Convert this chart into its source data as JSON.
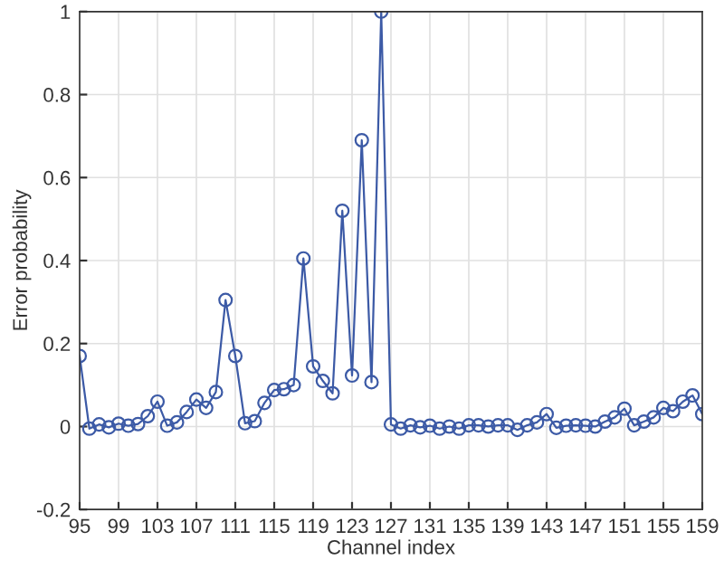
{
  "chart_data": {
    "type": "line",
    "xlabel": "Channel index",
    "ylabel": "Error probability",
    "x": [
      95,
      96,
      97,
      98,
      99,
      100,
      101,
      102,
      103,
      104,
      105,
      106,
      107,
      108,
      109,
      110,
      111,
      112,
      113,
      114,
      115,
      116,
      117,
      118,
      119,
      120,
      121,
      122,
      123,
      124,
      125,
      126,
      127,
      128,
      129,
      130,
      131,
      132,
      133,
      134,
      135,
      136,
      137,
      138,
      139,
      140,
      141,
      142,
      143,
      144,
      145,
      146,
      147,
      148,
      149,
      150,
      151,
      152,
      153,
      154,
      155,
      156,
      157,
      158,
      159
    ],
    "series": [
      {
        "color": "#3c5aa6",
        "values": [
          0.17,
          -0.005,
          0.005,
          -0.002,
          0.007,
          0.002,
          0.006,
          0.025,
          0.06,
          0.002,
          0.01,
          0.035,
          0.065,
          0.045,
          0.083,
          0.305,
          0.17,
          0.008,
          0.013,
          0.057,
          0.088,
          0.09,
          0.1,
          0.405,
          0.145,
          0.11,
          0.08,
          0.52,
          0.123,
          0.69,
          0.107,
          1.0,
          0.005,
          -0.005,
          0.003,
          -0.002,
          0.002,
          -0.005,
          0.0,
          -0.005,
          0.003,
          0.003,
          0.0,
          0.003,
          0.003,
          -0.008,
          0.003,
          0.01,
          0.03,
          -0.003,
          0.002,
          0.003,
          0.002,
          0.0,
          0.012,
          0.022,
          0.043,
          0.003,
          0.012,
          0.022,
          0.045,
          0.037,
          0.06,
          0.075,
          0.03
        ]
      }
    ],
    "xlim": [
      95,
      159
    ],
    "xticks": [
      95,
      99,
      103,
      107,
      111,
      115,
      119,
      123,
      127,
      131,
      135,
      139,
      143,
      147,
      151,
      155,
      159
    ],
    "ylim": [
      -0.2,
      1
    ],
    "yticks": [
      -0.2,
      0,
      0.2,
      0.4,
      0.6,
      0.8,
      1
    ],
    "grid": true,
    "marker": "circle",
    "line_style": "solid",
    "legend": false
  }
}
